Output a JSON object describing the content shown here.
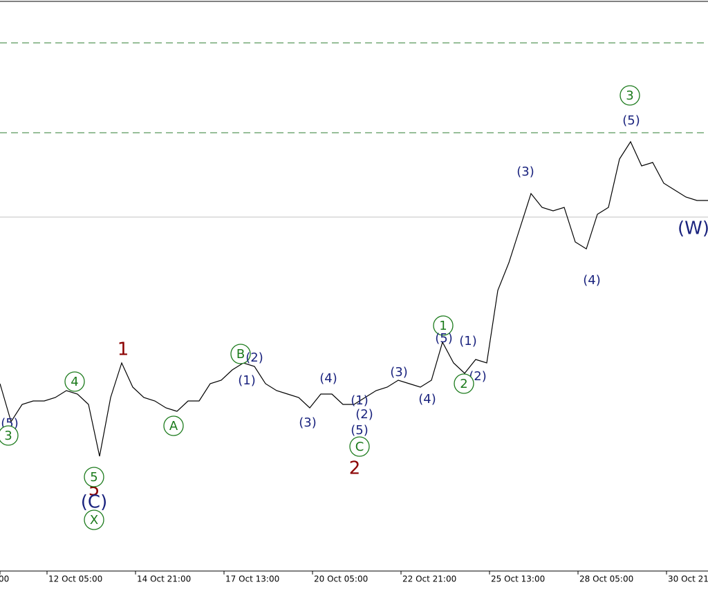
{
  "chart_data": {
    "type": "line",
    "color": "#000000",
    "values": [
      271,
      216,
      241,
      246,
      246,
      251,
      261,
      256,
      241,
      166,
      251,
      301,
      266,
      251,
      246,
      236,
      231,
      246,
      246,
      271,
      276,
      291,
      301,
      296,
      271,
      261,
      256,
      251,
      236,
      256,
      256,
      241,
      241,
      251,
      261,
      266,
      276,
      271,
      266,
      276,
      331,
      301,
      286,
      306,
      301,
      406,
      446,
      496,
      546,
      526,
      521,
      526,
      476,
      466,
      516,
      526,
      596,
      621,
      586,
      591,
      561,
      551,
      541,
      536,
      536
    ],
    "ylim": [
      0,
      826
    ],
    "hlines": [
      {
        "value": 764,
        "style": "dashed",
        "color": "#2e7d32"
      },
      {
        "value": 634,
        "style": "dashed",
        "color": "#2e7d32"
      },
      {
        "value": 512,
        "style": "solid",
        "color": "#c0c0c0"
      }
    ],
    "xticks": [
      "00",
      "12 Oct 05:00",
      "14 Oct 21:00",
      "17 Oct 13:00",
      "20 Oct 05:00",
      "22 Oct 21:00",
      "25 Oct 13:00",
      "28 Oct 05:00",
      "30 Oct 21:00"
    ],
    "annotations": [
      {
        "text": "(5)",
        "color": "#1a237e"
      },
      {
        "text": "3",
        "color": "#1b7a1b",
        "circled": true
      },
      {
        "text": "4",
        "color": "#1b7a1b",
        "circled": true
      },
      {
        "text": "5",
        "color": "#8b0000"
      },
      {
        "text": "5",
        "color": "#1b7a1b",
        "circled": true
      },
      {
        "text": "(C)",
        "color": "#1a237e"
      },
      {
        "text": "X",
        "color": "#1b7a1b",
        "circled": true
      },
      {
        "text": "1",
        "color": "#8b0000"
      },
      {
        "text": "A",
        "color": "#1b7a1b",
        "circled": true
      },
      {
        "text": "B",
        "color": "#1b7a1b",
        "circled": true
      },
      {
        "text": "(2)",
        "color": "#1a237e"
      },
      {
        "text": "(1)",
        "color": "#1a237e"
      },
      {
        "text": "(3)",
        "color": "#1a237e"
      },
      {
        "text": "(4)",
        "color": "#1a237e"
      },
      {
        "text": "(1)",
        "color": "#1a237e"
      },
      {
        "text": "(2)",
        "color": "#1a237e"
      },
      {
        "text": "(5)",
        "color": "#1a237e"
      },
      {
        "text": "C",
        "color": "#1b7a1b",
        "circled": true
      },
      {
        "text": "2",
        "color": "#8b0000"
      },
      {
        "text": "(3)",
        "color": "#1a237e"
      },
      {
        "text": "(4)",
        "color": "#1a237e"
      },
      {
        "text": "1",
        "color": "#1b7a1b",
        "circled": true
      },
      {
        "text": "(5)",
        "color": "#1a237e"
      },
      {
        "text": "(1)",
        "color": "#1a237e"
      },
      {
        "text": "(2)",
        "color": "#1a237e"
      },
      {
        "text": "2",
        "color": "#1b7a1b",
        "circled": true
      },
      {
        "text": "(3)",
        "color": "#1a237e"
      },
      {
        "text": "(4)",
        "color": "#1a237e"
      },
      {
        "text": "3",
        "color": "#1b7a1b",
        "circled": true
      },
      {
        "text": "(5)",
        "color": "#1a237e"
      },
      {
        "text": "(W)",
        "color": "#1a237e"
      }
    ]
  }
}
